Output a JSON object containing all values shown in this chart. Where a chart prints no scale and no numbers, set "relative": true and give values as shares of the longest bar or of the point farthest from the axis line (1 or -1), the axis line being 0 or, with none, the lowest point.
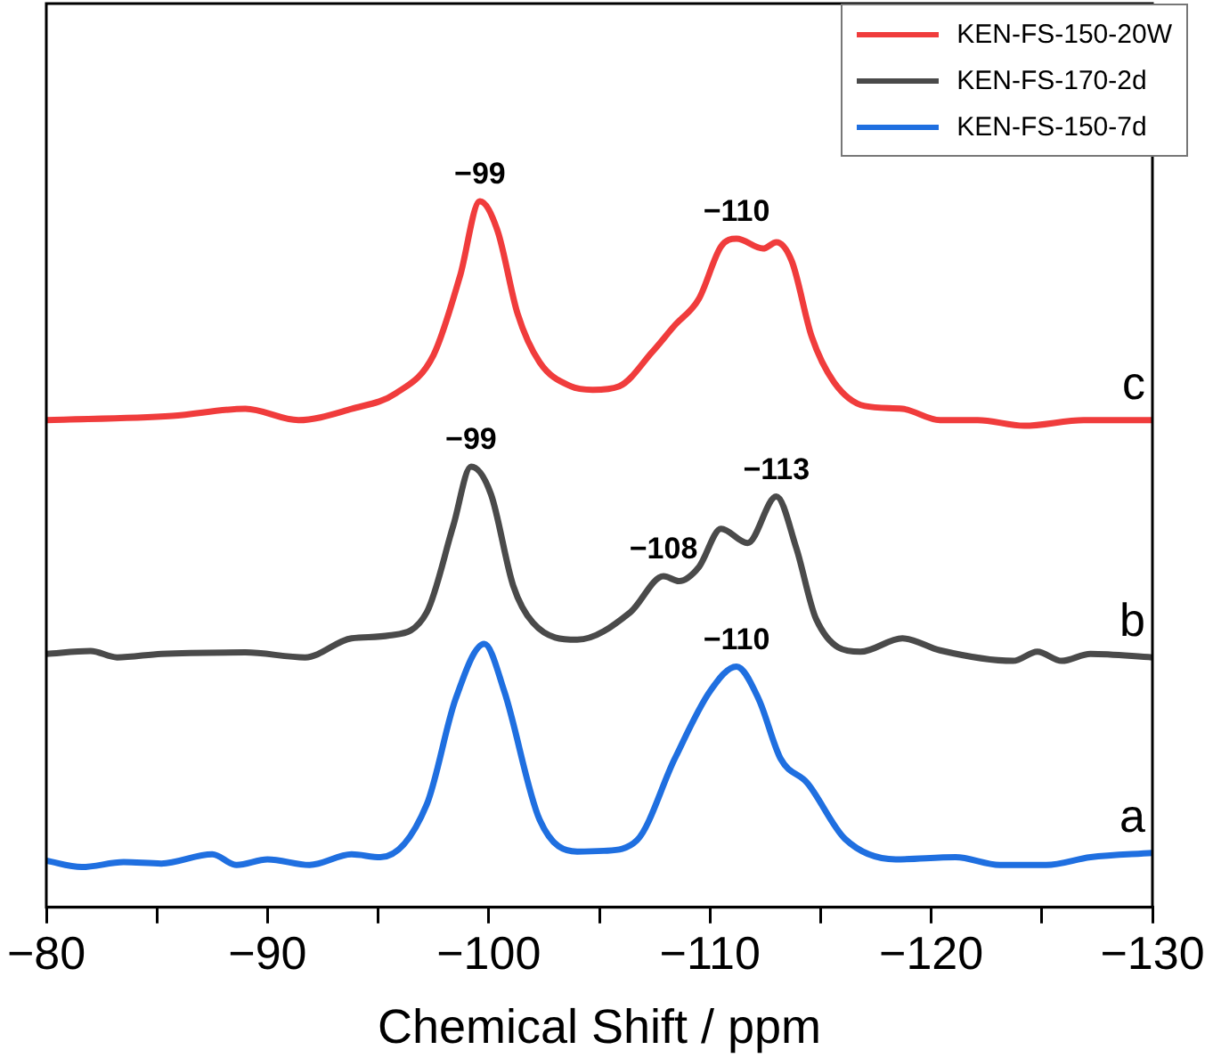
{
  "chart_data": {
    "type": "line",
    "relative": true,
    "xlabel": "Chemical Shift / ppm",
    "xlim": [
      -80,
      -130
    ],
    "xticks": [
      {
        "value": -80,
        "label": "−80"
      },
      {
        "value": -85,
        "label": null
      },
      {
        "value": -90,
        "label": "−90"
      },
      {
        "value": -95,
        "label": null
      },
      {
        "value": -100,
        "label": "−100"
      },
      {
        "value": -105,
        "label": null
      },
      {
        "value": -110,
        "label": "−110"
      },
      {
        "value": -115,
        "label": null
      },
      {
        "value": -120,
        "label": "−120"
      },
      {
        "value": -125,
        "label": null
      },
      {
        "value": -130,
        "label": "−130"
      }
    ],
    "legend": "top right",
    "grid": false,
    "marker": "none",
    "line_style": "solid",
    "tick_labels": "x",
    "series": [
      {
        "name": "KEN-FS-150-20W",
        "color": "#f03c3c",
        "x": [
          -80,
          -85.7,
          -89.0,
          -91.4,
          -93.8,
          -95.8,
          -97.5,
          -98.7,
          -99.6,
          -100.4,
          -101.3,
          -102.3,
          -103.7,
          -104.7,
          -105.9,
          -107.4,
          -108.4,
          -109.5,
          -110.5,
          -111.2,
          -112.4,
          -113.0,
          -113.7,
          -114.6,
          -115.6,
          -117.0,
          -118.7,
          -120.4,
          -122.1,
          -124.2,
          -126.9,
          -130
        ],
        "values": [
          0.69,
          0.696,
          0.706,
          0.69,
          0.706,
          0.728,
          0.782,
          0.894,
          1.0,
          0.958,
          0.841,
          0.772,
          0.738,
          0.733,
          0.738,
          0.787,
          0.824,
          0.862,
          0.936,
          0.947,
          0.933,
          0.942,
          0.915,
          0.808,
          0.744,
          0.71,
          0.706,
          0.69,
          0.69,
          0.682,
          0.69,
          0.69
        ]
      },
      {
        "name": "KEN-FS-170-2d",
        "color": "#4a4a4a",
        "x": [
          -80,
          -82.0,
          -83.2,
          -85.2,
          -89.0,
          -91.7,
          -93.8,
          -95.5,
          -97.2,
          -98.4,
          -99.2,
          -100.1,
          -101.1,
          -102.0,
          -104.0,
          -106.4,
          -107.9,
          -108.6,
          -109.5,
          -110.5,
          -111.7,
          -113.0,
          -113.9,
          -114.8,
          -116.8,
          -118.7,
          -120.4,
          -123.7,
          -124.8,
          -125.9,
          -127.2,
          -130
        ],
        "values": [
          0.359,
          0.363,
          0.354,
          0.359,
          0.361,
          0.354,
          0.381,
          0.385,
          0.418,
          0.541,
          0.624,
          0.585,
          0.456,
          0.403,
          0.379,
          0.418,
          0.469,
          0.462,
          0.482,
          0.536,
          0.516,
          0.582,
          0.509,
          0.408,
          0.362,
          0.381,
          0.364,
          0.349,
          0.362,
          0.349,
          0.359,
          0.354
        ]
      },
      {
        "name": "KEN-FS-150-7d",
        "color": "#1f6fe0",
        "x": [
          -80,
          -81.6,
          -83.5,
          -85.2,
          -87.5,
          -88.6,
          -90.0,
          -91.9,
          -93.8,
          -95.1,
          -97.2,
          -98.5,
          -99.8,
          -100.7,
          -102.3,
          -104.0,
          -105.2,
          -106.7,
          -108.4,
          -110.0,
          -111.2,
          -112.2,
          -113.2,
          -114.4,
          -116.1,
          -118.4,
          -121.1,
          -123.1,
          -125.2,
          -127.2,
          -130
        ],
        "values": [
          0.066,
          0.057,
          0.064,
          0.062,
          0.075,
          0.06,
          0.068,
          0.06,
          0.075,
          0.071,
          0.146,
          0.295,
          0.373,
          0.306,
          0.124,
          0.079,
          0.08,
          0.095,
          0.21,
          0.306,
          0.341,
          0.295,
          0.21,
          0.176,
          0.097,
          0.068,
          0.071,
          0.06,
          0.06,
          0.071,
          0.077
        ]
      }
    ],
    "annotations": [
      {
        "text": "−99",
        "x": -99.6,
        "y": 1.0
      },
      {
        "text": "−110",
        "x": -111.2,
        "y": 0.947
      },
      {
        "text": "−99",
        "x": -99.2,
        "y": 0.624
      },
      {
        "text": "−108",
        "x": -107.9,
        "y": 0.469
      },
      {
        "text": "−113",
        "x": -113.0,
        "y": 0.582
      },
      {
        "text": "−110",
        "x": -111.2,
        "y": 0.341
      },
      {
        "text": "c",
        "x": -130,
        "y": 0.69
      },
      {
        "text": "b",
        "x": -130,
        "y": 0.354
      },
      {
        "text": "a",
        "x": -130,
        "y": 0.077
      }
    ]
  }
}
